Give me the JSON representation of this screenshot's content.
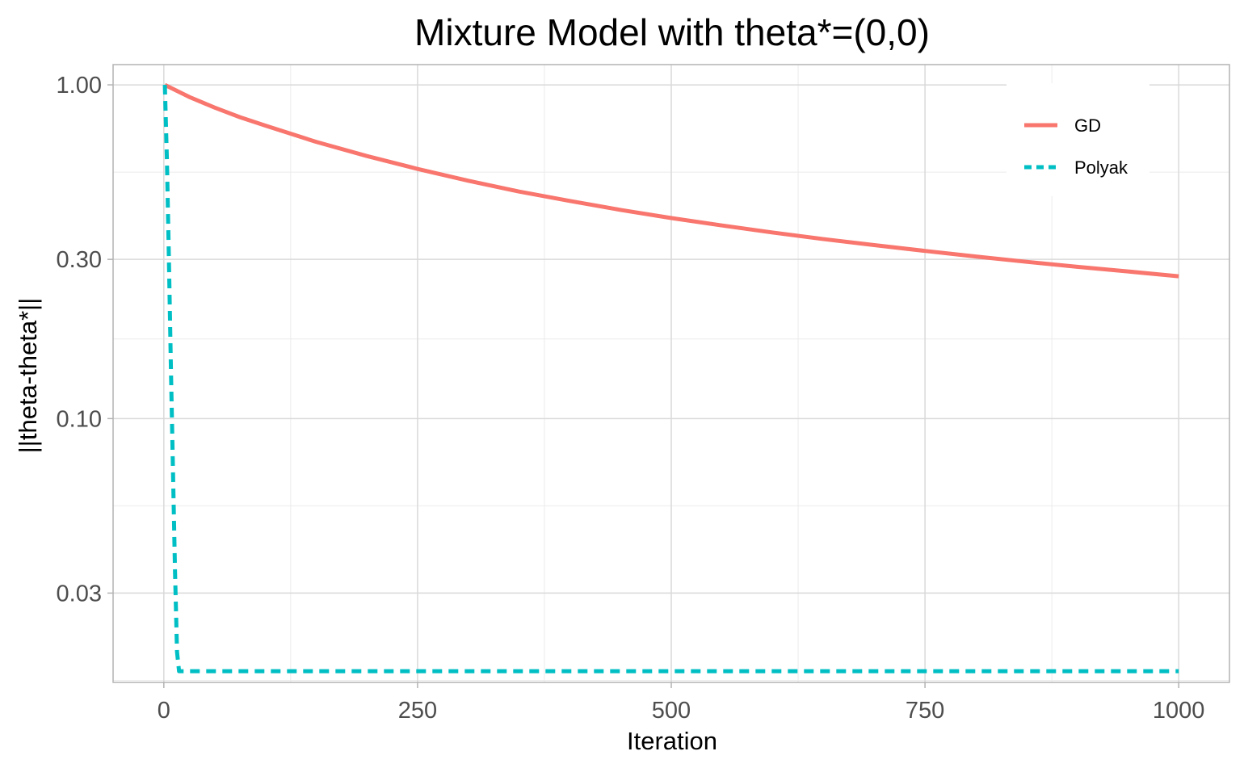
{
  "chart_data": {
    "type": "line",
    "title": "Mixture Model with theta*=(0,0)",
    "xlabel": "Iteration",
    "ylabel": "||theta-theta*||",
    "xlim": [
      -50,
      1050
    ],
    "ylim": [
      0.0162,
      1.15
    ],
    "y_scale": "log10",
    "x_ticks": [
      0,
      250,
      500,
      750,
      1000
    ],
    "x_tick_labels": [
      "0",
      "250",
      "500",
      "750",
      "1000"
    ],
    "y_ticks": [
      0.03,
      0.1,
      0.3,
      1.0
    ],
    "y_tick_labels": [
      "0.03",
      "0.10",
      "0.30",
      "1.00"
    ],
    "grid": true,
    "legend_position": "top-right",
    "series": [
      {
        "name": "GD",
        "color": "#F8766D",
        "line_style": "solid",
        "x": [
          1,
          25,
          50,
          75,
          100,
          150,
          200,
          250,
          300,
          350,
          400,
          450,
          500,
          550,
          600,
          650,
          700,
          750,
          800,
          850,
          900,
          950,
          1000
        ],
        "y": [
          1.0,
          0.92,
          0.855,
          0.8,
          0.755,
          0.675,
          0.612,
          0.56,
          0.516,
          0.479,
          0.449,
          0.422,
          0.399,
          0.379,
          0.361,
          0.345,
          0.331,
          0.318,
          0.306,
          0.295,
          0.285,
          0.276,
          0.267
        ]
      },
      {
        "name": "Polyak",
        "color": "#00BFC4",
        "line_style": "dashed",
        "x": [
          1,
          3,
          5,
          7,
          9,
          11,
          13,
          15,
          20,
          50,
          100,
          250,
          500,
          750,
          1000
        ],
        "y": [
          1.0,
          0.6,
          0.3,
          0.14,
          0.07,
          0.035,
          0.02,
          0.0175,
          0.0175,
          0.0175,
          0.0175,
          0.0175,
          0.0175,
          0.0175,
          0.0175
        ]
      }
    ]
  }
}
